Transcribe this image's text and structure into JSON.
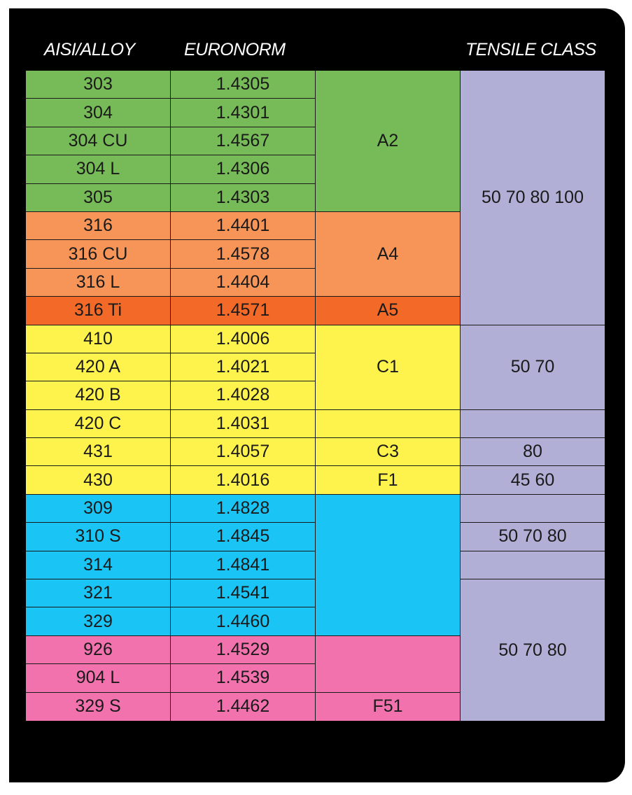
{
  "headers": {
    "alloy": "AISI/ALLOY",
    "euronorm": "EURONORM",
    "grade": "",
    "tensile": "TENSILE CLASS"
  },
  "colors": {
    "green": "#76bb57",
    "orange": "#f79457",
    "dark_orange": "#f26928",
    "yellow": "#fef34c",
    "blue": "#1ac4f5",
    "pink": "#f272ae",
    "lavender": "#b1afd6"
  },
  "rows": [
    {
      "alloy": "303",
      "euronorm": "1.4305",
      "color": "green"
    },
    {
      "alloy": "304",
      "euronorm": "1.4301",
      "color": "green"
    },
    {
      "alloy": "304 CU",
      "euronorm": "1.4567",
      "color": "green"
    },
    {
      "alloy": "304 L",
      "euronorm": "1.4306",
      "color": "green"
    },
    {
      "alloy": "305",
      "euronorm": "1.4303",
      "color": "green"
    },
    {
      "alloy": "316",
      "euronorm": "1.4401",
      "color": "orange"
    },
    {
      "alloy": "316 CU",
      "euronorm": "1.4578",
      "color": "orange"
    },
    {
      "alloy": "316 L",
      "euronorm": "1.4404",
      "color": "orange"
    },
    {
      "alloy": "316 Ti",
      "euronorm": "1.4571",
      "color": "dark_orange"
    },
    {
      "alloy": "410",
      "euronorm": "1.4006",
      "color": "yellow"
    },
    {
      "alloy": "420 A",
      "euronorm": "1.4021",
      "color": "yellow"
    },
    {
      "alloy": "420 B",
      "euronorm": "1.4028",
      "color": "yellow"
    },
    {
      "alloy": "420 C",
      "euronorm": "1.4031",
      "color": "yellow"
    },
    {
      "alloy": "431",
      "euronorm": "1.4057",
      "color": "yellow"
    },
    {
      "alloy": "430",
      "euronorm": "1.4016",
      "color": "yellow"
    },
    {
      "alloy": "309",
      "euronorm": "1.4828",
      "color": "blue"
    },
    {
      "alloy": "310 S",
      "euronorm": "1.4845",
      "color": "blue"
    },
    {
      "alloy": "314",
      "euronorm": "1.4841",
      "color": "blue"
    },
    {
      "alloy": "321",
      "euronorm": "1.4541",
      "color": "blue"
    },
    {
      "alloy": "329",
      "euronorm": "1.4460",
      "color": "blue"
    },
    {
      "alloy": "926",
      "euronorm": "1.4529",
      "color": "pink"
    },
    {
      "alloy": "904 L",
      "euronorm": "1.4539",
      "color": "pink"
    },
    {
      "alloy": "329 S",
      "euronorm": "1.4462",
      "color": "pink"
    }
  ],
  "grades": [
    {
      "label": "A2",
      "start": 1,
      "span": 5,
      "color": "green"
    },
    {
      "label": "A4",
      "start": 6,
      "span": 3,
      "color": "orange"
    },
    {
      "label": "A5",
      "start": 9,
      "span": 1,
      "color": "dark_orange"
    },
    {
      "label": "C1",
      "start": 10,
      "span": 3,
      "color": "yellow"
    },
    {
      "label": "",
      "start": 13,
      "span": 1,
      "color": "yellow"
    },
    {
      "label": "C3",
      "start": 14,
      "span": 1,
      "color": "yellow"
    },
    {
      "label": "F1",
      "start": 15,
      "span": 1,
      "color": "yellow"
    },
    {
      "label": "",
      "start": 16,
      "span": 5,
      "color": "blue"
    },
    {
      "label": "",
      "start": 21,
      "span": 2,
      "color": "pink"
    },
    {
      "label": "F51",
      "start": 23,
      "span": 1,
      "color": "pink"
    }
  ],
  "tensile": [
    {
      "label": "50 70 80 100",
      "start": 1,
      "span": 9
    },
    {
      "label": "50 70",
      "start": 10,
      "span": 3
    },
    {
      "label": "",
      "start": 13,
      "span": 1
    },
    {
      "label": "80",
      "start": 14,
      "span": 1
    },
    {
      "label": "45 60",
      "start": 15,
      "span": 1
    },
    {
      "label": "",
      "start": 16,
      "span": 1
    },
    {
      "label": "50 70 80",
      "start": 17,
      "span": 1
    },
    {
      "label": "",
      "start": 18,
      "span": 1
    },
    {
      "label": "50 70 80",
      "start": 19,
      "span": 5
    }
  ]
}
